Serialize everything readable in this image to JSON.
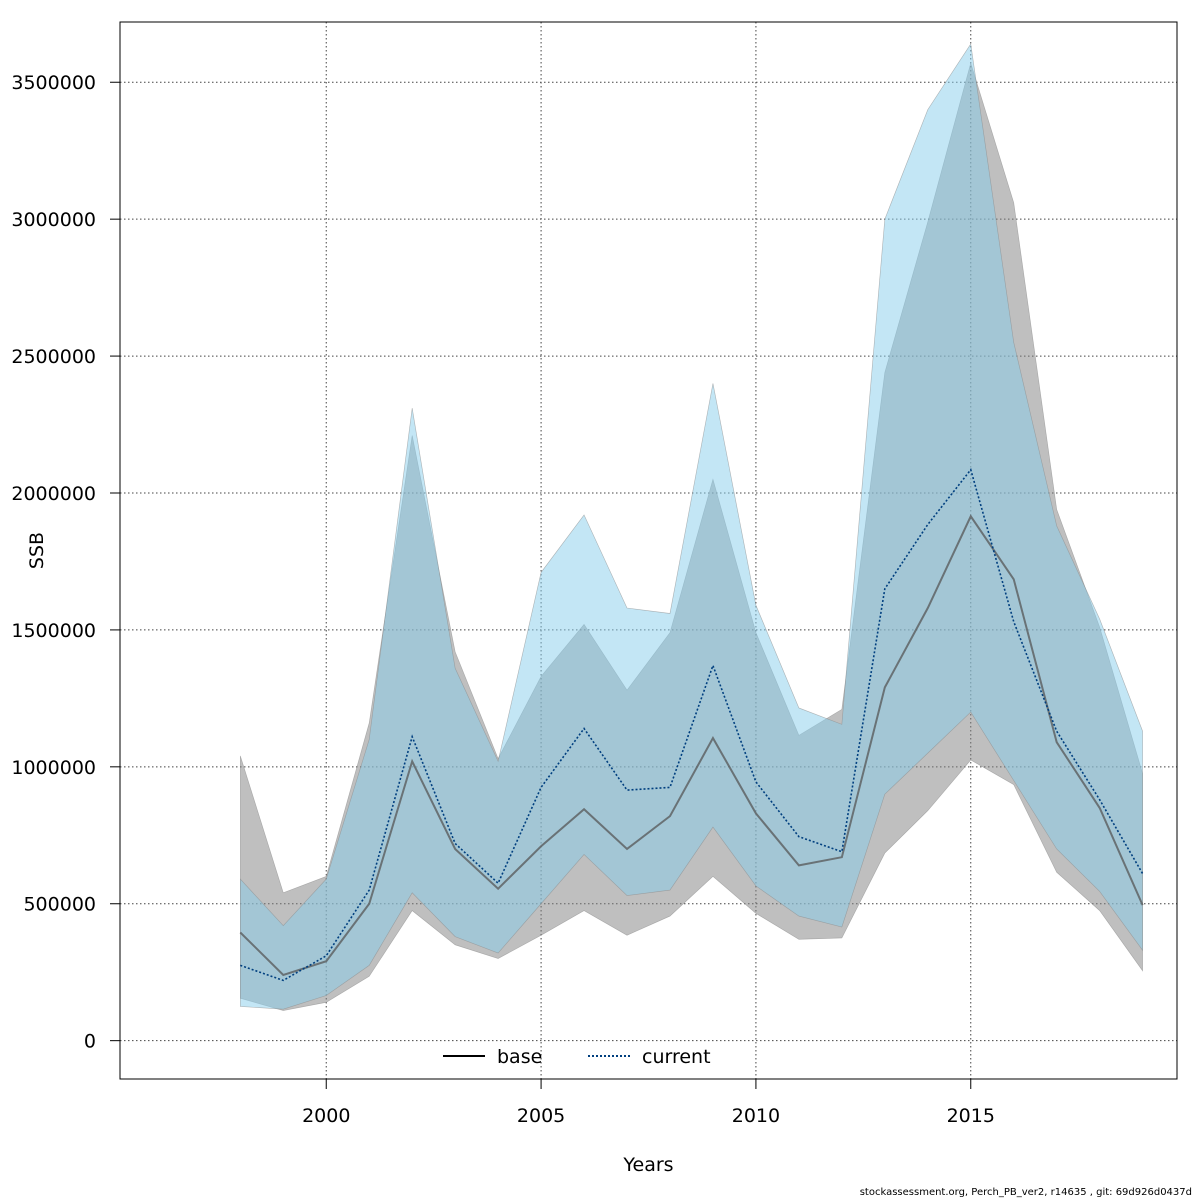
{
  "footnote": "stockassessment.org, Perch_PB_ver2, r14635 , git: 69d926d0437d",
  "chart_data": {
    "type": "line",
    "title": "",
    "xlabel": "Years",
    "ylabel": "SSB",
    "xlim": [
      1995.2,
      2019.8
    ],
    "ylim": [
      -140000,
      3720000
    ],
    "x_ticks": [
      2000,
      2005,
      2010,
      2015
    ],
    "y_ticks": [
      0,
      500000,
      1000000,
      1500000,
      2000000,
      2500000,
      3000000,
      3500000
    ],
    "grid": true,
    "legend_position": "bottom-center",
    "x": [
      1998,
      1999,
      2000,
      2001,
      2002,
      2003,
      2004,
      2005,
      2006,
      2007,
      2008,
      2009,
      2010,
      2011,
      2012,
      2013,
      2014,
      2015,
      2016,
      2017,
      2018,
      2019
    ],
    "series": [
      {
        "name": "base",
        "line_style": "solid",
        "line_color": "#555555",
        "band_color": "#808080",
        "values": [
          395000,
          240000,
          290000,
          500000,
          1020000,
          700000,
          555000,
          710000,
          845000,
          700000,
          820000,
          1105000,
          830000,
          640000,
          670000,
          1290000,
          1580000,
          1915000,
          1685000,
          1090000,
          850000,
          495000
        ],
        "lower": [
          155000,
          110000,
          140000,
          235000,
          475000,
          350000,
          300000,
          385000,
          475000,
          385000,
          455000,
          600000,
          465000,
          370000,
          375000,
          685000,
          840000,
          1025000,
          935000,
          615000,
          475000,
          255000
        ],
        "upper": [
          1040000,
          540000,
          600000,
          1160000,
          2210000,
          1420000,
          1030000,
          1330000,
          1520000,
          1280000,
          1490000,
          2050000,
          1490000,
          1115000,
          1210000,
          2440000,
          2990000,
          3570000,
          3060000,
          1940000,
          1510000,
          975000
        ]
      },
      {
        "name": "current",
        "line_style": "dotted",
        "line_color": "#003f7f",
        "band_color": "#87ceeb",
        "values": [
          275000,
          220000,
          310000,
          550000,
          1110000,
          720000,
          575000,
          925000,
          1140000,
          915000,
          925000,
          1370000,
          945000,
          745000,
          690000,
          1650000,
          1885000,
          2085000,
          1530000,
          1130000,
          880000,
          610000
        ],
        "lower": [
          125000,
          115000,
          165000,
          275000,
          540000,
          380000,
          320000,
          500000,
          680000,
          530000,
          550000,
          780000,
          565000,
          455000,
          415000,
          900000,
          1050000,
          1200000,
          950000,
          700000,
          545000,
          330000
        ],
        "upper": [
          590000,
          420000,
          590000,
          1100000,
          2310000,
          1360000,
          1020000,
          1710000,
          1920000,
          1580000,
          1560000,
          2400000,
          1590000,
          1215000,
          1155000,
          3000000,
          3400000,
          3640000,
          2550000,
          1880000,
          1540000,
          1130000
        ]
      }
    ]
  }
}
